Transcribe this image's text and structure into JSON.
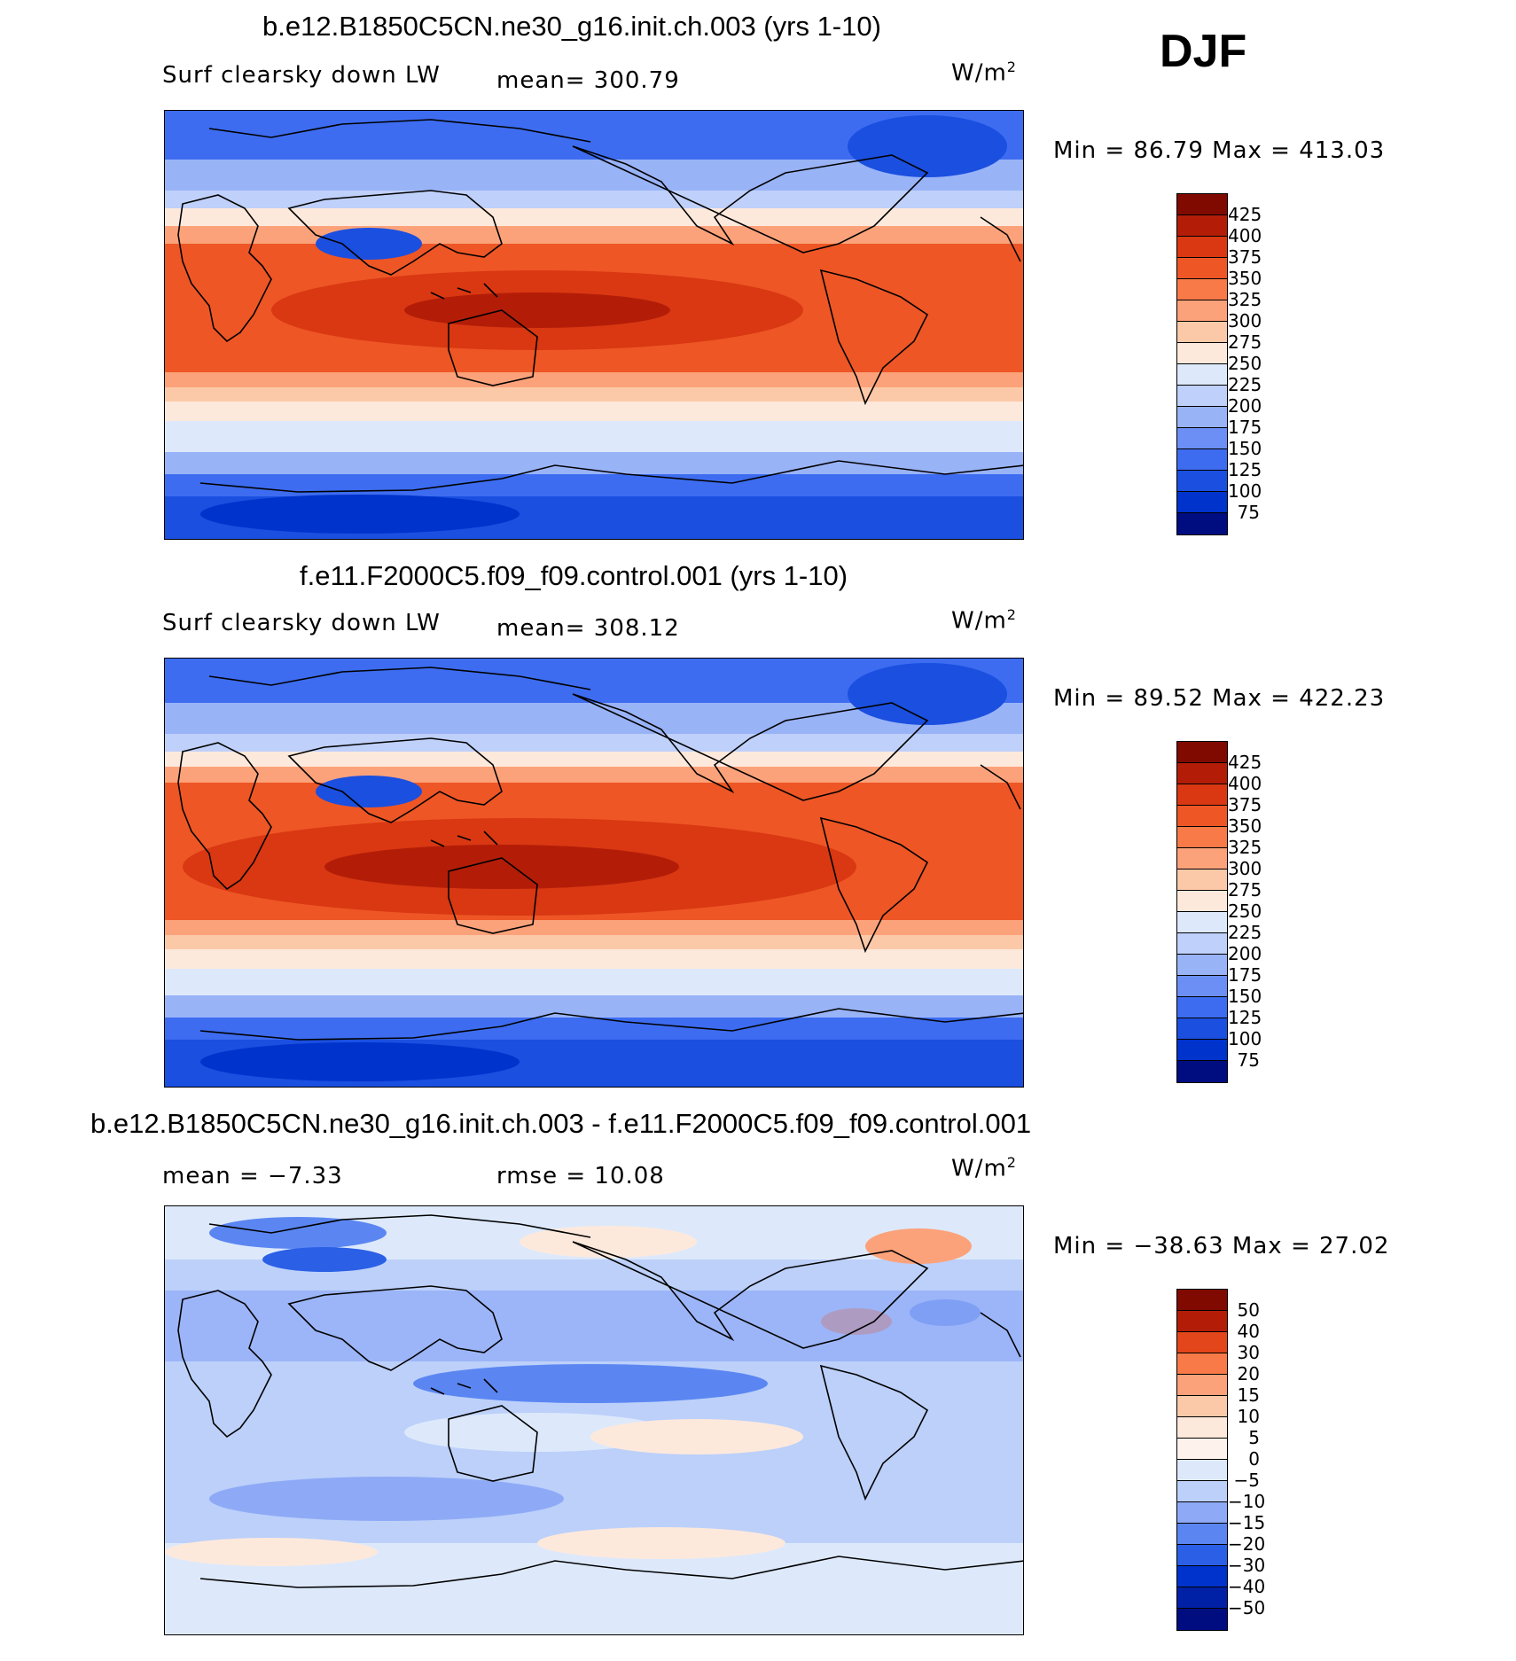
{
  "season": "DJF",
  "colors": {
    "abs_scale": [
      "#000d80",
      "#0021a6",
      "#0033cc",
      "#1a4fe0",
      "#3d6cf0",
      "#6b8ff5",
      "#99b3f7",
      "#bfd0fa",
      "#dde9fb",
      "#fde9dc",
      "#fcc9a8",
      "#fca27a",
      "#f77a48",
      "#ee5625",
      "#d93812",
      "#b31d08",
      "#800a00"
    ],
    "diff_scale": [
      "#000d80",
      "#0021a6",
      "#0033cc",
      "#2b5fe6",
      "#5b86f2",
      "#8eaaf6",
      "#bcd0fa",
      "#dde9fb",
      "#fde9dc",
      "#fcc9a8",
      "#fca27a",
      "#f77a48",
      "#e3461a",
      "#b31d08",
      "#800a00"
    ]
  },
  "panels": [
    {
      "title": "b.e12.B1850C5CN.ne30_g16.init.ch.003 (yrs 1-10)",
      "variable": "Surf clearsky down LW",
      "stat": "mean= 300.79",
      "stat2": "",
      "unit": "W/m",
      "unit_exp": "2",
      "minmax": "Min =   86.79 Max = 413.03",
      "levels": [
        "425",
        "400",
        "375",
        "350",
        "325",
        "300",
        "275",
        "250",
        "225",
        "200",
        "175",
        "150",
        "125",
        "100",
        "75"
      ]
    },
    {
      "title": "f.e11.F2000C5.f09_f09.control.001 (yrs 1-10)",
      "variable": "Surf clearsky down LW",
      "stat": "mean= 308.12",
      "stat2": "",
      "unit": "W/m",
      "unit_exp": "2",
      "minmax": "Min =   89.52 Max = 422.23",
      "levels": [
        "425",
        "400",
        "375",
        "350",
        "325",
        "300",
        "275",
        "250",
        "225",
        "200",
        "175",
        "150",
        "125",
        "100",
        "75"
      ]
    },
    {
      "title": "b.e12.B1850C5CN.ne30_g16.init.ch.003 - f.e11.F2000C5.f09_f09.control.001",
      "variable": "",
      "stat": "mean =   −7.33",
      "stat2": "rmse =   10.08",
      "unit": "W/m",
      "unit_exp": "2",
      "minmax": "Min = −38.63 Max =   27.02",
      "levels": [
        "50",
        "40",
        "30",
        "20",
        "15",
        "10",
        "5",
        "0",
        "−5",
        "−10",
        "−15",
        "−20",
        "−30",
        "−40",
        "−50"
      ]
    }
  ]
}
